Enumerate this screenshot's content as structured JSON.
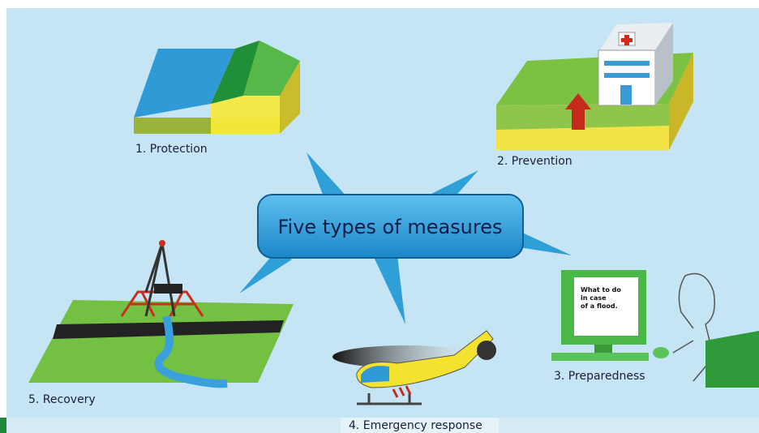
{
  "center": {
    "label": "Five types of measures"
  },
  "nodes": [
    {
      "label": "1. Protection"
    },
    {
      "label": "2. Prevention"
    },
    {
      "label": "3. Preparedness"
    },
    {
      "label": "4. Emergency response"
    },
    {
      "label": "5. Recovery"
    }
  ],
  "screen": {
    "lines": [
      "What to do",
      "in case",
      "of a flood."
    ]
  }
}
